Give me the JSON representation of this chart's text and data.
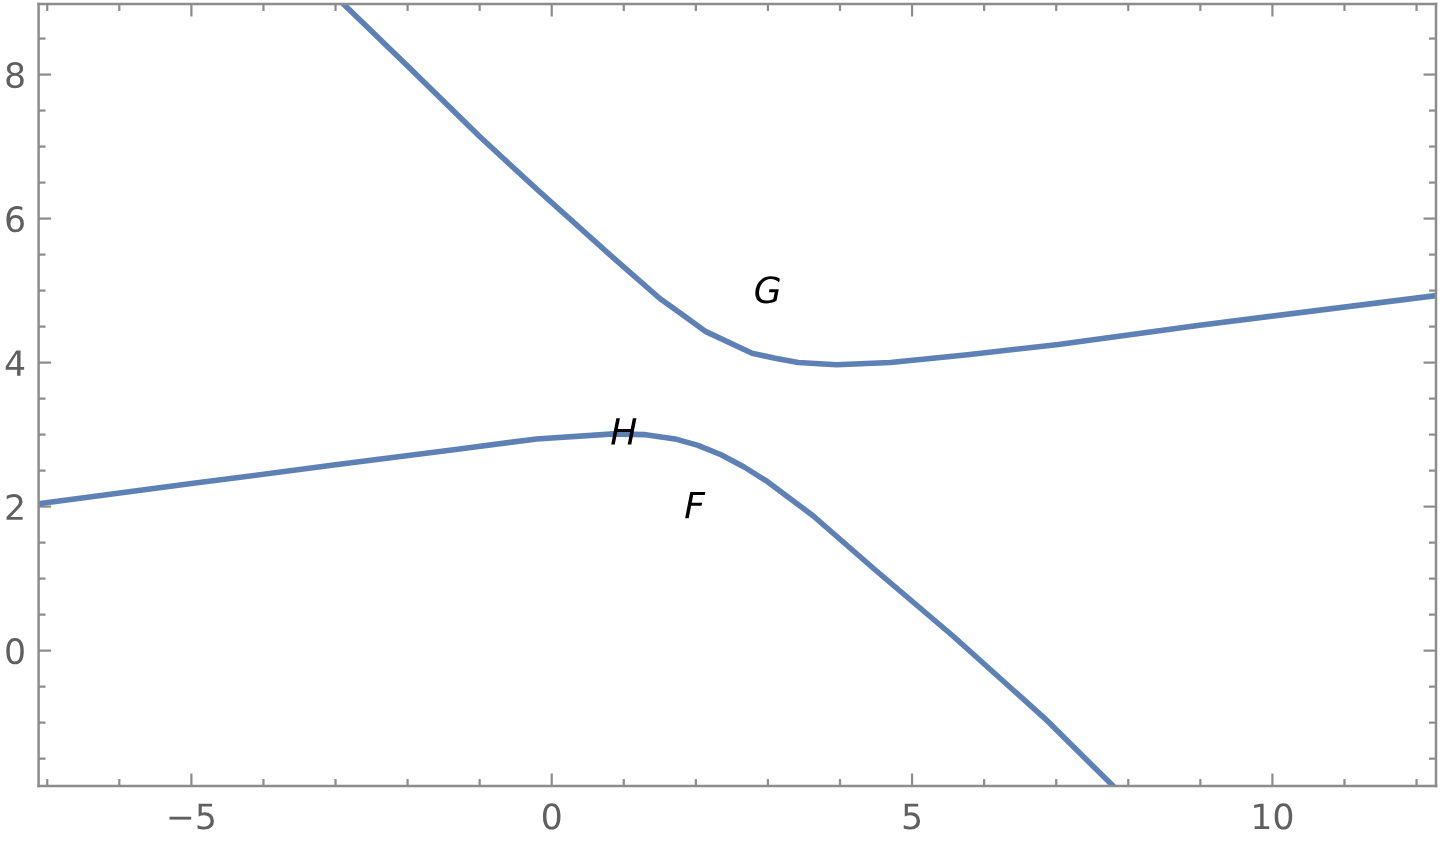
{
  "chart_data": {
    "type": "line",
    "series": [
      {
        "color": "#5e81b5",
        "x": [
          -2.89,
          -2.0,
          -1.0,
          -0.21,
          0.86,
          1.5,
          1.82,
          2.14,
          2.78,
          3.1,
          3.42,
          3.95,
          4.7,
          5.77,
          7.03,
          8.99,
          12.27
        ],
        "values": [
          8.98,
          8.12,
          7.14,
          6.41,
          5.45,
          4.89,
          4.66,
          4.43,
          4.13,
          4.06,
          4.0,
          3.97,
          4.0,
          4.11,
          4.25,
          4.52,
          4.93
        ]
      },
      {
        "color": "#5e81b5",
        "x": [
          -7.12,
          -5.0,
          -3.0,
          -1.28,
          -0.21,
          0.86,
          1.28,
          1.71,
          2.03,
          2.35,
          2.67,
          2.99,
          3.63,
          4.49,
          5.56,
          6.84,
          7.79
        ],
        "values": [
          2.04,
          2.32,
          2.58,
          2.8,
          2.94,
          3.01,
          3.0,
          2.94,
          2.85,
          2.72,
          2.55,
          2.35,
          1.87,
          1.12,
          0.21,
          -0.94,
          -1.88
        ]
      }
    ],
    "xlim": [
      -7.12,
      12.27
    ],
    "ylim": [
      -1.88,
      8.98
    ],
    "xticks": [
      {
        "value": -7,
        "label": null
      },
      {
        "value": -6,
        "label": null
      },
      {
        "value": -5,
        "label": "−5"
      },
      {
        "value": -4,
        "label": null
      },
      {
        "value": -3,
        "label": null
      },
      {
        "value": -2,
        "label": null
      },
      {
        "value": -1,
        "label": null
      },
      0,
      {
        "value": 1,
        "label": null
      },
      {
        "value": 2,
        "label": null
      },
      {
        "value": 3,
        "label": null
      },
      {
        "value": 4,
        "label": null
      },
      5,
      {
        "value": 6,
        "label": null
      },
      {
        "value": 7,
        "label": null
      },
      {
        "value": 8,
        "label": null
      },
      {
        "value": 9,
        "label": null
      },
      10,
      {
        "value": 11,
        "label": null
      },
      {
        "value": 12,
        "label": null
      }
    ],
    "yticks": [
      {
        "value": -1.5,
        "label": null
      },
      {
        "value": -1,
        "label": null
      },
      {
        "value": -0.5,
        "label": null
      },
      0,
      {
        "value": 0.5,
        "label": null
      },
      {
        "value": 1,
        "label": null
      },
      {
        "value": 1.5,
        "label": null
      },
      2,
      {
        "value": 2.5,
        "label": null
      },
      {
        "value": 3,
        "label": null
      },
      {
        "value": 3.5,
        "label": null
      },
      4,
      {
        "value": 4.5,
        "label": null
      },
      {
        "value": 5,
        "label": null
      },
      {
        "value": 5.5,
        "label": null
      },
      6,
      {
        "value": 6.5,
        "label": null
      },
      {
        "value": 7,
        "label": null
      },
      {
        "value": 7.5,
        "label": null
      },
      8,
      {
        "value": 8.5,
        "label": null
      }
    ],
    "annotations": [
      "G",
      {
        "text": "H",
        "x": 1,
        "y": 3
      },
      "F"
    ],
    "line_style": "solid",
    "marker": "none"
  }
}
